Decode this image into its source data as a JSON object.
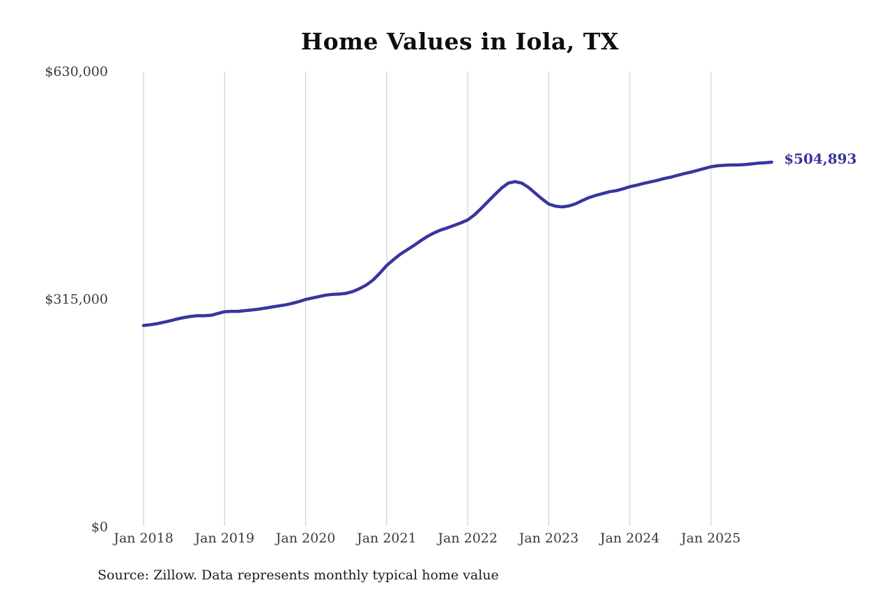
{
  "chart_data": {
    "type": "line",
    "title": "Home Values in Iola, TX",
    "series_name": "Monthly typical home value",
    "source": "Source: Zillow. Data represents monthly typical home value",
    "end_label": "$504,893",
    "latest_value": 504893,
    "line_color": "#39359e",
    "grid_color": "#c9c9c9",
    "grid": "vertical-only",
    "legend": "none",
    "ylim": [
      0,
      630000
    ],
    "yticks": [
      {
        "value": 0,
        "label": "$0"
      },
      {
        "value": 315000,
        "label": "$315,000"
      },
      {
        "value": 630000,
        "label": "$630,000"
      }
    ],
    "xticks": [
      {
        "label": "Jan 2018"
      },
      {
        "label": "Jan 2019"
      },
      {
        "label": "Jan 2020"
      },
      {
        "label": "Jan 2021"
      },
      {
        "label": "Jan 2022"
      },
      {
        "label": "Jan 2023"
      },
      {
        "label": "Jan 2024"
      },
      {
        "label": "Jan 2025"
      }
    ],
    "x": [
      "2018-01",
      "2018-02",
      "2018-03",
      "2018-04",
      "2018-05",
      "2018-06",
      "2018-07",
      "2018-08",
      "2018-09",
      "2018-10",
      "2018-11",
      "2018-12",
      "2019-01",
      "2019-02",
      "2019-03",
      "2019-04",
      "2019-05",
      "2019-06",
      "2019-07",
      "2019-08",
      "2019-09",
      "2019-10",
      "2019-11",
      "2019-12",
      "2020-01",
      "2020-02",
      "2020-03",
      "2020-04",
      "2020-05",
      "2020-06",
      "2020-07",
      "2020-08",
      "2020-09",
      "2020-10",
      "2020-11",
      "2020-12",
      "2021-01",
      "2021-02",
      "2021-03",
      "2021-04",
      "2021-05",
      "2021-06",
      "2021-07",
      "2021-08",
      "2021-09",
      "2021-10",
      "2021-11",
      "2021-12",
      "2022-01",
      "2022-02",
      "2022-03",
      "2022-04",
      "2022-05",
      "2022-06",
      "2022-07",
      "2022-08",
      "2022-09",
      "2022-10",
      "2022-11",
      "2022-12",
      "2023-01",
      "2023-02",
      "2023-03",
      "2023-04",
      "2023-05",
      "2023-06",
      "2023-07",
      "2023-08",
      "2023-09",
      "2023-10",
      "2023-11",
      "2023-12",
      "2024-01",
      "2024-02",
      "2024-03",
      "2024-04",
      "2024-05",
      "2024-06",
      "2024-07",
      "2024-08",
      "2024-09",
      "2024-10",
      "2024-11",
      "2024-12",
      "2025-01",
      "2025-02",
      "2025-03",
      "2025-04",
      "2025-05",
      "2025-06",
      "2025-07",
      "2025-08",
      "2025-09",
      "2025-10"
    ],
    "values": [
      279000,
      280000,
      281500,
      283500,
      285500,
      288000,
      290000,
      291500,
      292500,
      292500,
      293000,
      295500,
      298000,
      298500,
      298500,
      299500,
      300500,
      301500,
      303000,
      304500,
      306000,
      307500,
      309500,
      312000,
      315000,
      317000,
      319000,
      321000,
      322000,
      322500,
      323500,
      326000,
      330000,
      335000,
      342000,
      351500,
      362000,
      370000,
      377500,
      383500,
      389500,
      396000,
      402000,
      407000,
      411000,
      414000,
      417500,
      421000,
      425000,
      432000,
      441000,
      450500,
      460000,
      469000,
      476000,
      478000,
      476000,
      470000,
      462000,
      454000,
      447000,
      444000,
      443000,
      444500,
      447500,
      452000,
      456000,
      459000,
      461500,
      464000,
      465500,
      468000,
      471000,
      473000,
      475500,
      477500,
      479500,
      482000,
      484000,
      486500,
      489000,
      491000,
      493500,
      496000,
      498500,
      500000,
      500500,
      501000,
      501000,
      501500,
      502500,
      503500,
      504000,
      504893
    ]
  }
}
